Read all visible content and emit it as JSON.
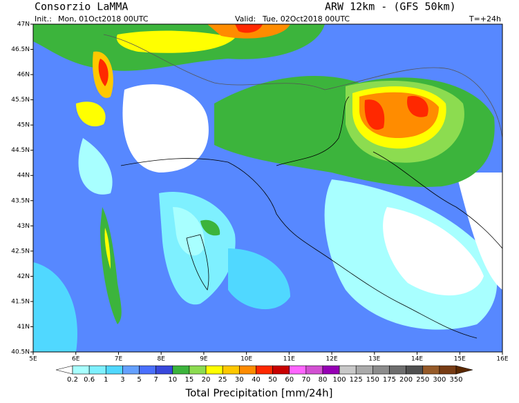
{
  "header": {
    "title": "Consorzio LaMMA",
    "model": "ARW 12km - (GFS 50km)",
    "init_label": "Init.:",
    "init": "Mon, 01Oct2018 00UTC",
    "valid_label": "Valid:",
    "valid": "Tue, 02Oct2018 00UTC",
    "lead": "T=+24h"
  },
  "axes": {
    "lat_labels": [
      "47N",
      "46.5N",
      "46N",
      "45.5N",
      "45N",
      "44.5N",
      "44N",
      "43.5N",
      "43N",
      "42.5N",
      "42N",
      "41.5N",
      "41N",
      "40.5N"
    ],
    "lon_labels": [
      "5E",
      "6E",
      "7E",
      "8E",
      "9E",
      "10E",
      "11E",
      "12E",
      "13E",
      "14E",
      "15E",
      "16E"
    ]
  },
  "colorbar": {
    "title": "Total Precipitation [mm/24h]",
    "labels": [
      "0.2",
      "0.6",
      "1",
      "3",
      "5",
      "7",
      "10",
      "15",
      "20",
      "25",
      "30",
      "40",
      "50",
      "60",
      "70",
      "80",
      "100",
      "125",
      "150",
      "175",
      "200",
      "250",
      "300",
      "350"
    ],
    "colors": [
      "#ffffff",
      "#a8ffff",
      "#7ef0ff",
      "#50d8ff",
      "#64a0ff",
      "#4a70ff",
      "#3848dc",
      "#3cb43c",
      "#8cdc50",
      "#ffff00",
      "#ffc800",
      "#ff8c00",
      "#ff2800",
      "#c80000",
      "#ff64ff",
      "#d250d2",
      "#9600b4",
      "#c8c8c8",
      "#aaaaaa",
      "#8c8c8c",
      "#6e6e6e",
      "#505050",
      "#965a28",
      "#783c14",
      "#5a2800"
    ]
  }
}
